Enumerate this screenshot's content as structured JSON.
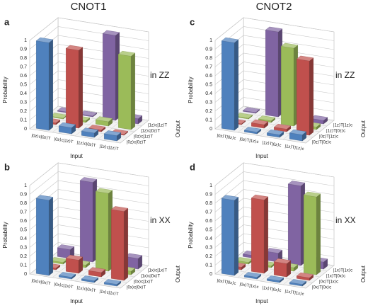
{
  "chart_data": [
    {
      "type": "bar3d",
      "panel_label": "a",
      "title": "CNOT1",
      "annotation": "in ZZ",
      "ylabel": "Probability",
      "xlabel": "Input",
      "zlabel": "Output",
      "categories": [
        "|0z⟩c|0z⟩T",
        "|0z⟩c|1z⟩T",
        "|1z⟩c|0z⟩T",
        "|1z⟩c|1z⟩T"
      ],
      "series": [
        {
          "name": "|0z⟩c|0z⟩T",
          "color": "#4f81bd",
          "values": [
            0.99,
            0.07,
            0.05,
            0.06
          ]
        },
        {
          "name": "|0z⟩c|1z⟩T",
          "color": "#c0504d",
          "values": [
            0.02,
            0.88,
            0.02,
            0.01
          ]
        },
        {
          "name": "|1z⟩c|0z⟩T",
          "color": "#9bbb59",
          "values": [
            0.01,
            0.02,
            0.05,
            0.83
          ]
        },
        {
          "name": "|1z⟩c|1z⟩T",
          "color": "#8064a2",
          "values": [
            0.01,
            0.01,
            0.96,
            0.06
          ]
        }
      ],
      "ylim": [
        0,
        1
      ],
      "yticks": [
        0,
        0.1,
        0.2,
        0.3,
        0.4,
        0.5,
        0.6,
        0.7,
        0.8,
        0.9,
        1
      ],
      "grid": true
    },
    {
      "type": "bar3d",
      "panel_label": "b",
      "annotation": "in XX",
      "ylabel": "Probability",
      "xlabel": "Input",
      "zlabel": "Output",
      "categories": [
        "|0x⟩c|0x⟩T",
        "|0x⟩c|1x⟩T",
        "|1x⟩c|0x⟩T",
        "|1x⟩c|1x⟩T"
      ],
      "series": [
        {
          "name": "|0x⟩c|0x⟩T",
          "color": "#4f81bd",
          "values": [
            0.85,
            0.02,
            0.02,
            0.02
          ]
        },
        {
          "name": "|0x⟩c|1x⟩T",
          "color": "#c0504d",
          "values": [
            0.02,
            0.15,
            0.05,
            0.78
          ]
        },
        {
          "name": "|1x⟩c|0x⟩T",
          "color": "#9bbb59",
          "values": [
            0.02,
            0.03,
            0.88,
            0.04
          ]
        },
        {
          "name": "|1x⟩c|1x⟩T",
          "color": "#8064a2",
          "values": [
            0.1,
            0.9,
            0.03,
            0.12
          ]
        }
      ],
      "ylim": [
        0,
        1
      ],
      "yticks": [
        0,
        0.1,
        0.2,
        0.3,
        0.4,
        0.5,
        0.6,
        0.7,
        0.8,
        0.9,
        1
      ],
      "grid": true
    },
    {
      "type": "bar3d",
      "panel_label": "c",
      "title": "CNOT2",
      "annotation": "in ZZ",
      "ylabel": "Probability",
      "xlabel": "Input",
      "zlabel": "Output",
      "categories": [
        "|0z⟩T|0z⟩c",
        "|0z⟩T|1z⟩c",
        "|1z⟩T|0z⟩c",
        "|1z⟩T|1z⟩c"
      ],
      "series": [
        {
          "name": "|0z⟩T|0z⟩c",
          "color": "#4f81bd",
          "values": [
            0.99,
            0.02,
            0.03,
            0.07
          ]
        },
        {
          "name": "|0z⟩T|1z⟩c",
          "color": "#c0504d",
          "values": [
            0.01,
            0.04,
            0.03,
            0.84
          ]
        },
        {
          "name": "|1z⟩T|0z⟩c",
          "color": "#9bbb59",
          "values": [
            0.01,
            0.02,
            0.88,
            0.03
          ]
        },
        {
          "name": "|1z⟩T|1z⟩c",
          "color": "#8064a2",
          "values": [
            0.01,
            0.96,
            0.02,
            0.04
          ]
        }
      ],
      "ylim": [
        0,
        1
      ],
      "yticks": [
        0,
        0.1,
        0.2,
        0.3,
        0.4,
        0.5,
        0.6,
        0.7,
        0.8,
        0.9,
        1
      ],
      "grid": true
    },
    {
      "type": "bar3d",
      "panel_label": "d",
      "annotation": "in XX",
      "ylabel": "Probability",
      "xlabel": "Input",
      "zlabel": "Output",
      "categories": [
        "|0x⟩T|0x⟩c",
        "|0x⟩T|1x⟩c",
        "|1x⟩T|0x⟩c",
        "|1x⟩T|1x⟩c"
      ],
      "series": [
        {
          "name": "|0x⟩T|0x⟩c",
          "color": "#4f81bd",
          "values": [
            0.85,
            0.02,
            0.02,
            0.02
          ]
        },
        {
          "name": "|0x⟩T|1x⟩c",
          "color": "#c0504d",
          "values": [
            0.03,
            0.83,
            0.15,
            0.03
          ]
        },
        {
          "name": "|1x⟩T|0x⟩c",
          "color": "#9bbb59",
          "values": [
            0.02,
            0.02,
            0.04,
            0.88
          ]
        },
        {
          "name": "|1x⟩T|1x⟩c",
          "color": "#8064a2",
          "values": [
            0.03,
            0.1,
            0.9,
            0.08
          ]
        }
      ],
      "ylim": [
        0,
        1
      ],
      "yticks": [
        0,
        0.1,
        0.2,
        0.3,
        0.4,
        0.5,
        0.6,
        0.7,
        0.8,
        0.9,
        1
      ],
      "grid": true
    }
  ]
}
